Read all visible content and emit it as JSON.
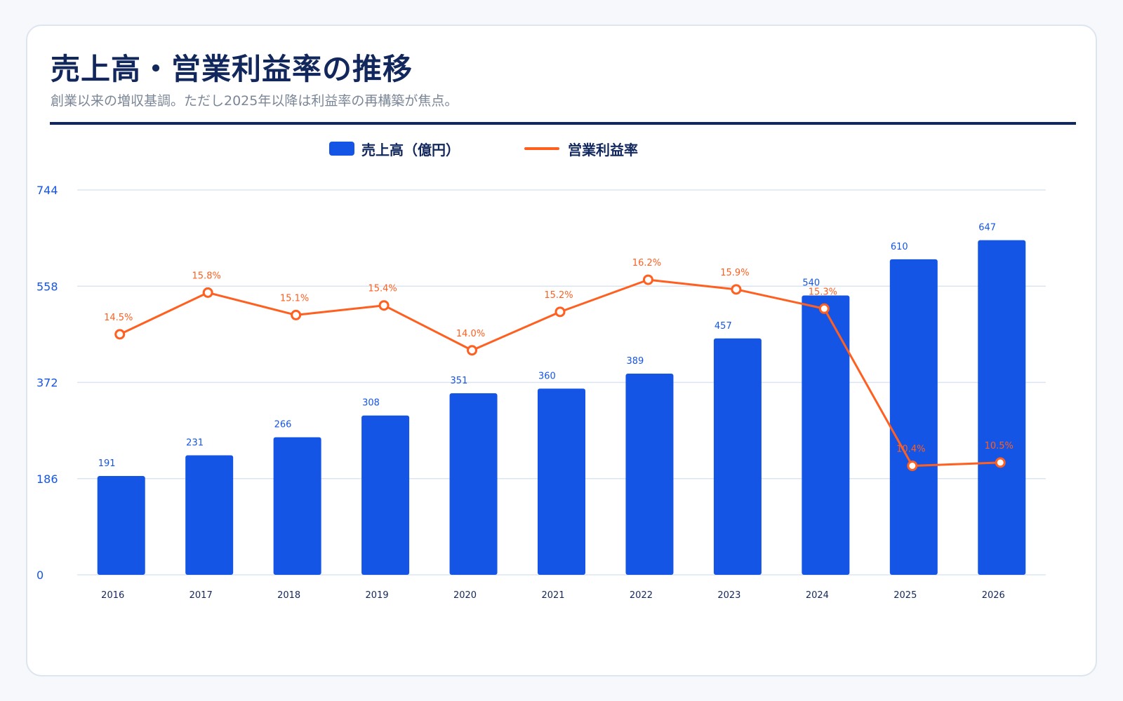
{
  "header": {
    "title": "売上高・営業利益率の推移",
    "subtitle": "創業以来の増収基調。ただし2025年以降は利益率の再構築が焦点。"
  },
  "legend": {
    "bar_label": "売上高（億円）",
    "line_label": "営業利益率"
  },
  "colors": {
    "bar": "#1555e6",
    "line": "#ff5f1f",
    "axis_text": "#1555e6",
    "grid": "#dbe5f1",
    "x_text": "#12275c",
    "title": "#12275c"
  },
  "chart_data": {
    "type": "bar",
    "categories": [
      "2016",
      "2017",
      "2018",
      "2019",
      "2020",
      "2021",
      "2022",
      "2023",
      "2024",
      "2025",
      "2026"
    ],
    "series": [
      {
        "name": "売上高（億円）",
        "type": "bar",
        "values": [
          191,
          231,
          266,
          308,
          351,
          360,
          389,
          457,
          540,
          610,
          647
        ],
        "labels": [
          "191",
          "231",
          "266",
          "308",
          "351",
          "360",
          "389",
          "457",
          "540",
          "610",
          "647"
        ]
      },
      {
        "name": "営業利益率",
        "type": "line",
        "values": [
          14.5,
          15.8,
          15.1,
          15.4,
          14.0,
          15.2,
          16.2,
          15.9,
          15.3,
          10.4,
          10.5
        ],
        "labels": [
          "14.5%",
          "15.8%",
          "15.1%",
          "15.4%",
          "14.0%",
          "15.2%",
          "16.2%",
          "15.9%",
          "15.3%",
          "10.4%",
          "10.5%"
        ]
      }
    ],
    "y_ticks": [
      "744",
      "558",
      "372",
      "186",
      "0"
    ],
    "ylim": [
      0,
      744
    ],
    "y2lim": [
      7.0,
      19.0
    ],
    "grid": true,
    "legend_position": "top"
  }
}
